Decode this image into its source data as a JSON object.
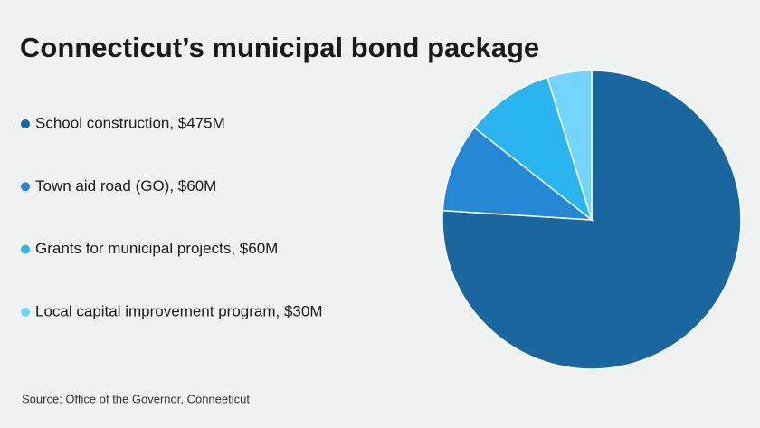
{
  "chart_data": {
    "type": "pie",
    "title": "Connecticut’s municipal bond package",
    "categories": [
      "School construction, $475M",
      "Town aid road (GO), $60M",
      "Grants for municipal projects, $60M",
      "Local capital improvement program, $30M"
    ],
    "values": [
      475,
      60,
      60,
      30
    ],
    "colors": [
      "#1a67a0",
      "#2387d3",
      "#2bb5ee",
      "#74d5fc"
    ],
    "source": "Source: Office of the Governor, Conneeticut"
  }
}
